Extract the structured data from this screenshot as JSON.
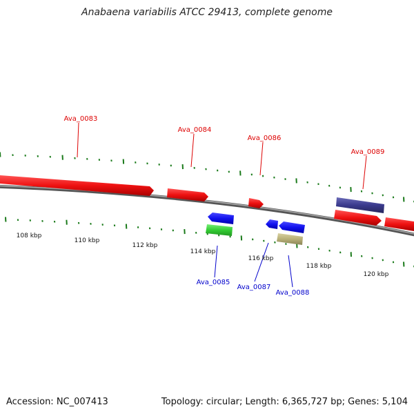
{
  "title": "Anabaena variabilis ATCC 29413, complete genome",
  "footer": {
    "accession": "Accession: NC_007413",
    "summary": "Topology: circular; Length: 6,365,727 bp; Genes: 5,104"
  },
  "colors": {
    "forward_label": "#dd0000",
    "reverse_label": "#0000cc",
    "tick": "#1a7a1a",
    "backbone": "#888888",
    "gene_red": "#ee1111",
    "gene_blue": "#1111ee",
    "gene_green": "#33cc33",
    "gene_navy": "#3a3a8c",
    "gene_khaki": "#b8b078"
  },
  "tick_labels": [
    "108 kbp",
    "110 kbp",
    "112 kbp",
    "114 kbp",
    "116 kbp",
    "118 kbp",
    "120 kbp"
  ],
  "gene_labels": {
    "forward": [
      "Ava_0083",
      "Ava_0084",
      "Ava_0086",
      "Ava_0089"
    ],
    "reverse": [
      "Ava_0085",
      "Ava_0087",
      "Ava_0088"
    ]
  }
}
